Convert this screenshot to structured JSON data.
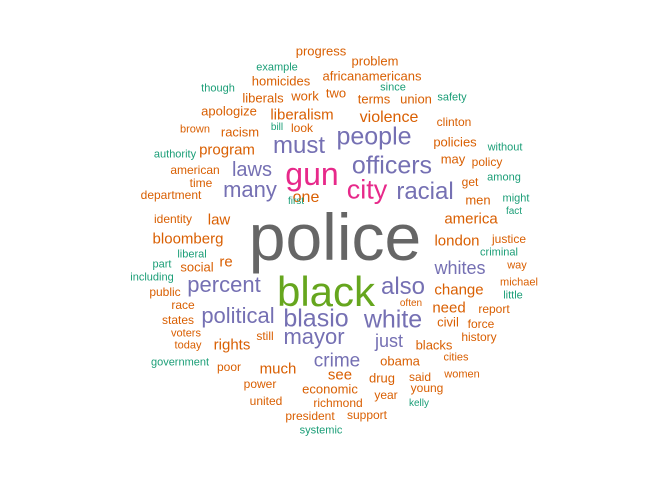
{
  "palette": {
    "teal": "#1b9e77",
    "orange": "#d95f02",
    "purple": "#7570b3",
    "magenta": "#e7298a",
    "green": "#66a61e",
    "gray": "#666666"
  },
  "words": [
    {
      "text": "police",
      "color": "gray"
    },
    {
      "text": "black",
      "color": "green"
    },
    {
      "text": "gun",
      "color": "magenta"
    },
    {
      "text": "city",
      "color": "magenta"
    },
    {
      "text": "officers",
      "color": "purple"
    },
    {
      "text": "people",
      "color": "purple"
    },
    {
      "text": "racial",
      "color": "purple"
    },
    {
      "text": "white",
      "color": "purple"
    },
    {
      "text": "blasio",
      "color": "purple"
    },
    {
      "text": "also",
      "color": "purple"
    },
    {
      "text": "must",
      "color": "purple"
    },
    {
      "text": "many",
      "color": "purple"
    },
    {
      "text": "laws",
      "color": "purple"
    },
    {
      "text": "percent",
      "color": "purple"
    },
    {
      "text": "political",
      "color": "purple"
    },
    {
      "text": "mayor",
      "color": "purple"
    },
    {
      "text": "whites",
      "color": "purple"
    },
    {
      "text": "crime",
      "color": "purple"
    },
    {
      "text": "just",
      "color": "purple"
    },
    {
      "text": "violence",
      "color": "orange"
    },
    {
      "text": "liberalism",
      "color": "orange"
    },
    {
      "text": "program",
      "color": "orange"
    },
    {
      "text": "bloomberg",
      "color": "orange"
    },
    {
      "text": "america",
      "color": "orange"
    },
    {
      "text": "london",
      "color": "orange"
    },
    {
      "text": "change",
      "color": "orange"
    },
    {
      "text": "one",
      "color": "orange"
    },
    {
      "text": "law",
      "color": "orange"
    },
    {
      "text": "rights",
      "color": "orange"
    },
    {
      "text": "much",
      "color": "orange"
    },
    {
      "text": "see",
      "color": "orange"
    },
    {
      "text": "need",
      "color": "orange"
    },
    {
      "text": "re",
      "color": "orange"
    },
    {
      "text": "men",
      "color": "orange"
    },
    {
      "text": "blacks",
      "color": "orange"
    },
    {
      "text": "policies",
      "color": "orange"
    },
    {
      "text": "obama",
      "color": "orange"
    },
    {
      "text": "economic",
      "color": "orange"
    },
    {
      "text": "drug",
      "color": "orange"
    },
    {
      "text": "racism",
      "color": "orange"
    },
    {
      "text": "social",
      "color": "orange"
    },
    {
      "text": "work",
      "color": "orange"
    },
    {
      "text": "two",
      "color": "orange"
    },
    {
      "text": "terms",
      "color": "orange"
    },
    {
      "text": "union",
      "color": "orange"
    },
    {
      "text": "africanamericans",
      "color": "orange"
    },
    {
      "text": "progress",
      "color": "orange"
    },
    {
      "text": "problem",
      "color": "orange"
    },
    {
      "text": "homicides",
      "color": "orange"
    },
    {
      "text": "liberals",
      "color": "orange"
    },
    {
      "text": "apologize",
      "color": "orange"
    },
    {
      "text": "look",
      "color": "orange"
    },
    {
      "text": "clinton",
      "color": "orange"
    },
    {
      "text": "brown",
      "color": "orange"
    },
    {
      "text": "american",
      "color": "orange"
    },
    {
      "text": "time",
      "color": "orange"
    },
    {
      "text": "department",
      "color": "orange"
    },
    {
      "text": "may",
      "color": "orange"
    },
    {
      "text": "policy",
      "color": "orange"
    },
    {
      "text": "get",
      "color": "orange"
    },
    {
      "text": "identity",
      "color": "orange"
    },
    {
      "text": "justice",
      "color": "orange"
    },
    {
      "text": "civil",
      "color": "orange"
    },
    {
      "text": "force",
      "color": "orange"
    },
    {
      "text": "report",
      "color": "orange"
    },
    {
      "text": "history",
      "color": "orange"
    },
    {
      "text": "public",
      "color": "orange"
    },
    {
      "text": "race",
      "color": "orange"
    },
    {
      "text": "states",
      "color": "orange"
    },
    {
      "text": "voters",
      "color": "orange"
    },
    {
      "text": "today",
      "color": "orange"
    },
    {
      "text": "still",
      "color": "orange"
    },
    {
      "text": "poor",
      "color": "orange"
    },
    {
      "text": "power",
      "color": "orange"
    },
    {
      "text": "united",
      "color": "orange"
    },
    {
      "text": "president",
      "color": "orange"
    },
    {
      "text": "support",
      "color": "orange"
    },
    {
      "text": "richmond",
      "color": "orange"
    },
    {
      "text": "year",
      "color": "orange"
    },
    {
      "text": "said",
      "color": "orange"
    },
    {
      "text": "young",
      "color": "orange"
    },
    {
      "text": "women",
      "color": "orange"
    },
    {
      "text": "cities",
      "color": "orange"
    },
    {
      "text": "often",
      "color": "orange"
    },
    {
      "text": "way",
      "color": "orange"
    },
    {
      "text": "michael",
      "color": "orange"
    },
    {
      "text": "example",
      "color": "teal"
    },
    {
      "text": "since",
      "color": "teal"
    },
    {
      "text": "though",
      "color": "teal"
    },
    {
      "text": "safety",
      "color": "teal"
    },
    {
      "text": "bill",
      "color": "teal"
    },
    {
      "text": "authority",
      "color": "teal"
    },
    {
      "text": "without",
      "color": "teal"
    },
    {
      "text": "among",
      "color": "teal"
    },
    {
      "text": "first",
      "color": "teal"
    },
    {
      "text": "might",
      "color": "teal"
    },
    {
      "text": "fact",
      "color": "teal"
    },
    {
      "text": "liberal",
      "color": "teal"
    },
    {
      "text": "part",
      "color": "teal"
    },
    {
      "text": "including",
      "color": "teal"
    },
    {
      "text": "criminal",
      "color": "teal"
    },
    {
      "text": "little",
      "color": "teal"
    },
    {
      "text": "government",
      "color": "teal"
    },
    {
      "text": "kelly",
      "color": "teal"
    },
    {
      "text": "systemic",
      "color": "teal"
    }
  ]
}
